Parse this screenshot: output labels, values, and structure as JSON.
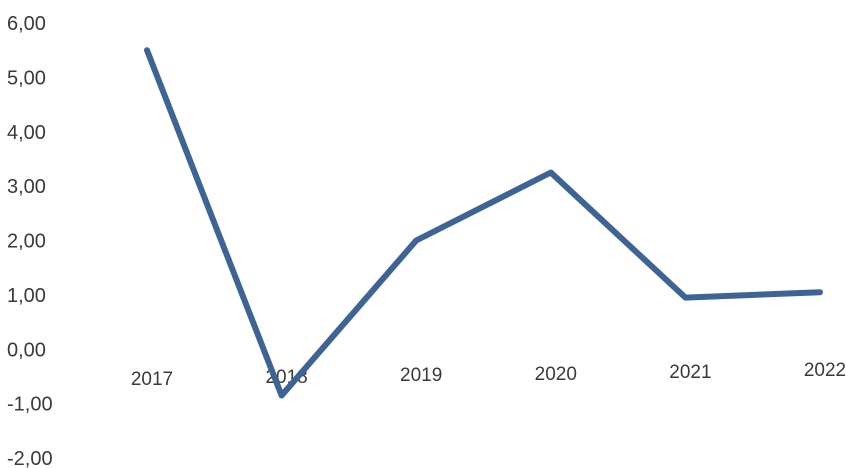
{
  "chart_data": {
    "type": "line",
    "title": "",
    "xlabel": "",
    "ylabel": "",
    "categories": [
      "2017",
      "2018",
      "2019",
      "2020",
      "2021",
      "2022"
    ],
    "series": [
      {
        "values": [
          5.5,
          -0.85,
          2.0,
          3.25,
          0.95,
          1.05
        ],
        "color": "#3d6494"
      }
    ],
    "y_ticks": [
      "6,00",
      "5,00",
      "4,00",
      "3,00",
      "2,00",
      "1,00",
      "0,00",
      "-1,00",
      "-2,00"
    ],
    "ylim": [
      -2,
      6
    ],
    "grid": false,
    "legend": false
  }
}
